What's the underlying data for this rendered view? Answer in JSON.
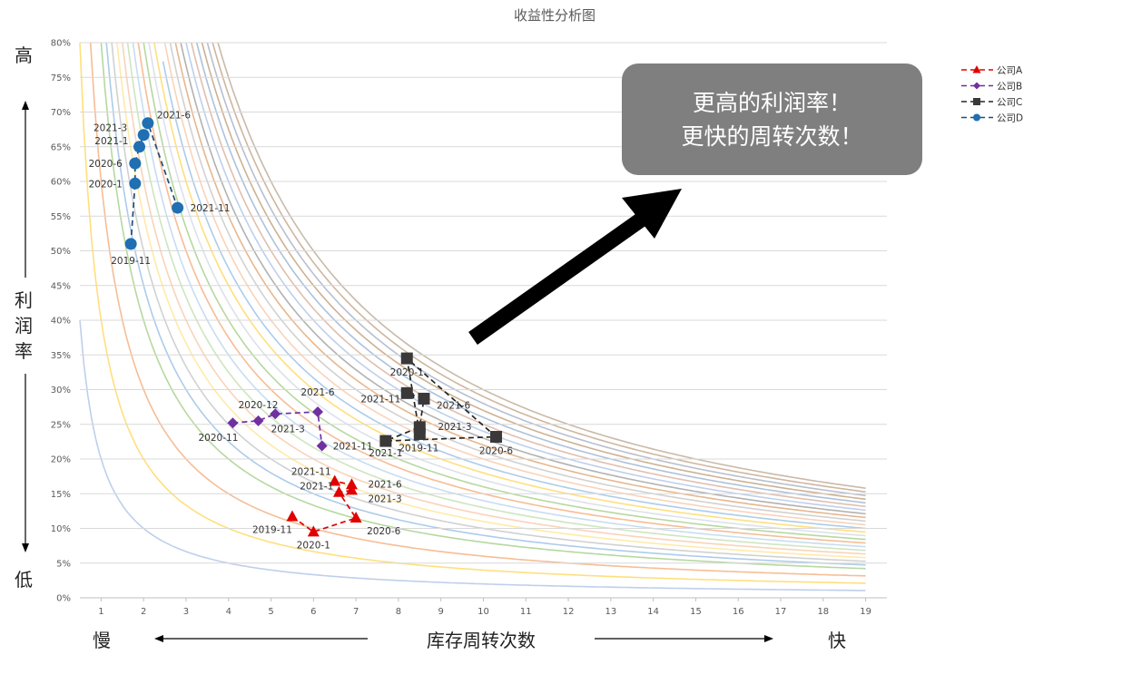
{
  "chart_data": {
    "type": "scatter",
    "title": "收益性分析图",
    "xlabel": "库存周转次数",
    "ylabel": "利润率",
    "x_ticks": [
      "1",
      "2",
      "3",
      "4",
      "5",
      "6",
      "7",
      "8",
      "9",
      "10",
      "11",
      "12",
      "13",
      "14",
      "15",
      "16",
      "17",
      "18",
      "19"
    ],
    "y_ticks": [
      "0%",
      "5%",
      "10%",
      "15%",
      "20%",
      "25%",
      "30%",
      "35%",
      "40%",
      "45%",
      "50%",
      "55%",
      "60%",
      "65%",
      "70%",
      "75%",
      "80%"
    ],
    "xlim": [
      0.5,
      19.5
    ],
    "ylim": [
      0,
      0.8
    ],
    "grid": "horizontal",
    "legend_position": "top-right",
    "y_high": "高",
    "y_low": "低",
    "x_slow": "慢",
    "x_fast": "快",
    "callout": [
      "更高的利润率！",
      "更快的周转次数！"
    ],
    "background_curves": {
      "formula": "y = k / x",
      "k_values": [
        0.2,
        0.4,
        0.6,
        0.8,
        0.9,
        1.0,
        1.1,
        1.2,
        1.3,
        1.4,
        1.5,
        1.6,
        1.7,
        1.8,
        1.9,
        2.0,
        2.1,
        2.2,
        2.3,
        2.4,
        2.5,
        2.6,
        2.7,
        2.8,
        2.9,
        3.0
      ]
    },
    "series": [
      {
        "name": "公司A",
        "marker": "triangle",
        "color": "#e00000",
        "line_color": "#e00000",
        "points": [
          {
            "label": "2019-11",
            "x": 5.5,
            "y": 0.117
          },
          {
            "label": "2020-1",
            "x": 6.0,
            "y": 0.095
          },
          {
            "label": "2020-6",
            "x": 7.0,
            "y": 0.115
          },
          {
            "label": "2021-1",
            "x": 6.6,
            "y": 0.152
          },
          {
            "label": "2021-3",
            "x": 6.9,
            "y": 0.155
          },
          {
            "label": "2021-6",
            "x": 6.9,
            "y": 0.163
          },
          {
            "label": "2021-11",
            "x": 6.5,
            "y": 0.168
          }
        ]
      },
      {
        "name": "公司B",
        "marker": "diamond",
        "color": "#7030a0",
        "line_color": "#7030a0",
        "points": [
          {
            "label": "2020-11",
            "x": 4.1,
            "y": 0.252
          },
          {
            "label": "2020-12",
            "x": 4.7,
            "y": 0.255
          },
          {
            "label": "2021-3",
            "x": 5.1,
            "y": 0.265
          },
          {
            "label": "2021-6",
            "x": 6.1,
            "y": 0.268
          },
          {
            "label": "2021-11",
            "x": 6.2,
            "y": 0.219
          }
        ]
      },
      {
        "name": "公司C",
        "marker": "square",
        "color": "#3a3838",
        "line_color": "#262626",
        "points": [
          {
            "label": "2019-11",
            "x": 8.5,
            "y": 0.236
          },
          {
            "label": "2020-1",
            "x": 8.2,
            "y": 0.345
          },
          {
            "label": "2020-6",
            "x": 10.3,
            "y": 0.232
          },
          {
            "label": "2021-1",
            "x": 7.7,
            "y": 0.226
          },
          {
            "label": "2021-3",
            "x": 8.5,
            "y": 0.246
          },
          {
            "label": "2021-6",
            "x": 8.6,
            "y": 0.287
          },
          {
            "label": "2021-11",
            "x": 8.2,
            "y": 0.295
          }
        ]
      },
      {
        "name": "公司D",
        "marker": "circle",
        "color": "#1f6fb2",
        "line_color": "#1f4e79",
        "points": [
          {
            "label": "2019-11",
            "x": 1.7,
            "y": 0.51
          },
          {
            "label": "2020-1",
            "x": 1.8,
            "y": 0.597
          },
          {
            "label": "2020-6",
            "x": 1.8,
            "y": 0.626
          },
          {
            "label": "2021-1",
            "x": 1.9,
            "y": 0.65
          },
          {
            "label": "2021-3",
            "x": 2.0,
            "y": 0.667
          },
          {
            "label": "2021-6",
            "x": 2.1,
            "y": 0.684
          },
          {
            "label": "2021-11",
            "x": 2.8,
            "y": 0.562
          }
        ]
      }
    ]
  }
}
